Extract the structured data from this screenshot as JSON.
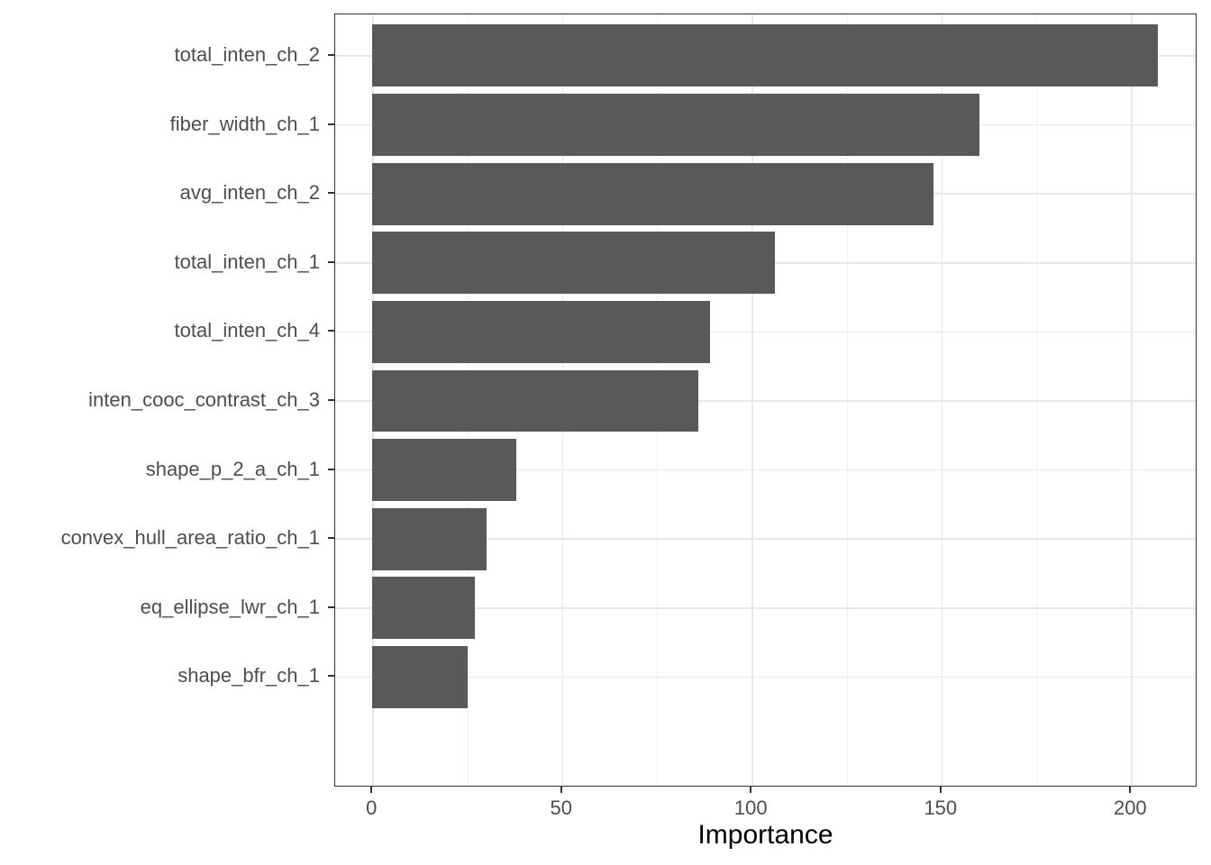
{
  "chart_data": {
    "type": "bar",
    "orientation": "horizontal",
    "title": "",
    "xlabel": "Importance",
    "ylabel": "",
    "categories": [
      "total_inten_ch_2",
      "fiber_width_ch_1",
      "avg_inten_ch_2",
      "total_inten_ch_1",
      "total_inten_ch_4",
      "inten_cooc_contrast_ch_3",
      "shape_p_2_a_ch_1",
      "convex_hull_area_ratio_ch_1",
      "eq_ellipse_lwr_ch_1",
      "shape_bfr_ch_1"
    ],
    "values": [
      207,
      160,
      148,
      106,
      89,
      86,
      38,
      30,
      27,
      25
    ],
    "xlim": [
      -9.8,
      217.5
    ],
    "x_major_ticks": [
      0,
      50,
      100,
      150,
      200
    ],
    "x_minor_ticks": [
      25,
      75,
      125,
      175
    ],
    "grid": true,
    "legend": "none",
    "bar_color": "#595959",
    "bar_width_fraction": 0.9,
    "category_expansion": 0.6,
    "panel_border_color": "#333333",
    "gridline_color": "#e8e8e8",
    "axis_text_color": "#4d4d4d",
    "axis_title_color": "#000000"
  }
}
